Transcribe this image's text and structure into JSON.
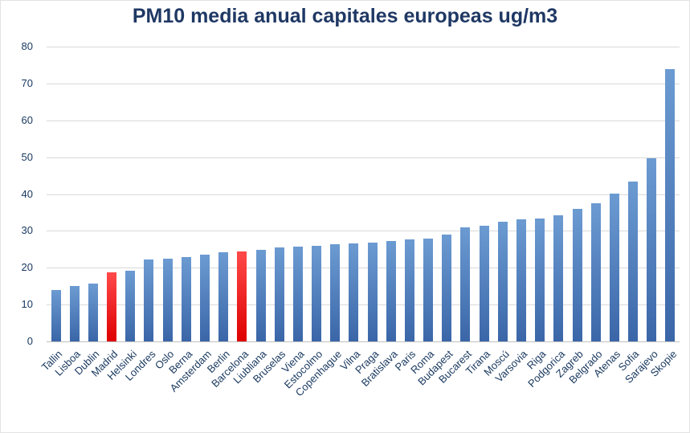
{
  "chart_data": {
    "type": "bar",
    "title": "PM10 media anual capitales europeas ug/m3",
    "categories": [
      "Tallin",
      "Lisboa",
      "Dublin",
      "Madrid",
      "Helsinki",
      "Londres",
      "Oslo",
      "Berna",
      "Amsterdam",
      "Berlin",
      "Barcelona",
      "Liubliana",
      "Bruselas",
      "Viena",
      "Estocolmo",
      "Copenhague",
      "Vilna",
      "Praga",
      "Bratislava",
      "Paris",
      "Roma",
      "Budapest",
      "Bucarest",
      "Tirana",
      "Moscú",
      "Varsovia",
      "Riga",
      "Podgorica",
      "Zagreb",
      "Belgrado",
      "Atenas",
      "Sofia",
      "Sarajevo",
      "Skopie"
    ],
    "values": [
      14,
      15.1,
      15.8,
      18.7,
      19.2,
      22.2,
      22.5,
      22.9,
      23.5,
      24.2,
      24.4,
      24.8,
      25.5,
      25.7,
      26,
      26.4,
      26.6,
      26.9,
      27.2,
      27.7,
      28,
      29,
      30.9,
      31.5,
      32.5,
      33.1,
      33.4,
      34.2,
      35.9,
      37.4,
      40.1,
      43.4,
      49.7,
      74
    ],
    "highlight_indices": [
      3,
      10
    ],
    "xlabel": "",
    "ylabel": "",
    "ylim": [
      0,
      80
    ],
    "ytick_step": 10,
    "grid": true,
    "legend": "none",
    "bar_color_top": "#6C9BD2",
    "bar_color_bottom": "#3A66A8",
    "highlight_color_top": "#FF4A4A",
    "highlight_color_bottom": "#DE0000",
    "title_color": "#1F3864",
    "axis_label_color": "#17375E",
    "gridline_color": "#D9D9D9",
    "axisline_color": "#BFBFBF"
  }
}
